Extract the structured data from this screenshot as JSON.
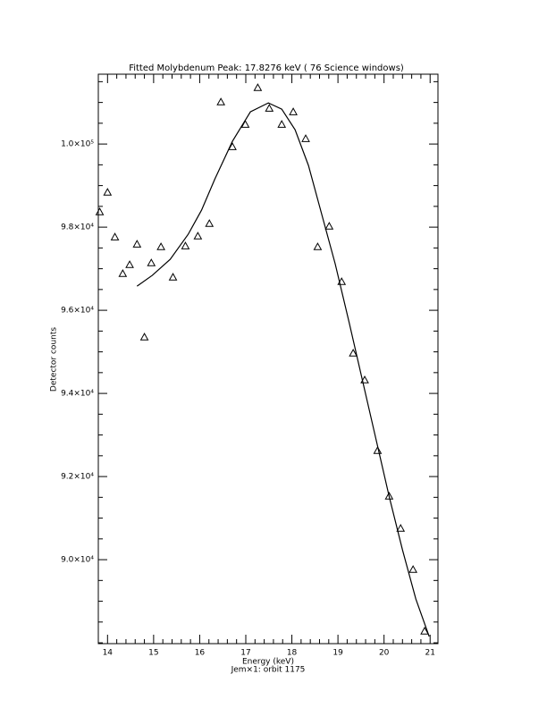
{
  "chart_data": {
    "type": "scatter",
    "title": "Fitted Molybdenum Peak:      17.8276 keV (      76 Science windows)",
    "x_label": "Energy (keV)",
    "subtitle": "Jem×1: orbit 1175",
    "y_label": "Detector counts",
    "xlim": [
      13.8,
      21.17
    ],
    "ylim": [
      87980,
      101680
    ],
    "xticks": [
      14,
      15,
      16,
      17,
      18,
      19,
      20,
      21
    ],
    "yticks": [
      {
        "value": 90000,
        "label": "9.0×10⁴"
      },
      {
        "value": 92000,
        "label": "9.2×10⁴"
      },
      {
        "value": 94000,
        "label": "9.4×10⁴"
      },
      {
        "value": 96000,
        "label": "9.6×10⁴"
      },
      {
        "value": 98000,
        "label": "9.8×10⁴"
      },
      {
        "value": 100000,
        "label": "1.0×10⁵"
      }
    ],
    "color": "#000000",
    "series": [
      {
        "style": "triangle",
        "x": [
          13.83,
          14.0,
          14.16,
          14.33,
          14.48,
          14.64,
          14.8,
          14.95,
          15.16,
          15.42,
          15.69,
          15.96,
          16.21,
          16.46,
          16.71,
          16.99,
          17.26,
          17.51,
          17.78,
          18.03,
          18.3,
          18.56,
          18.81,
          19.08,
          19.33,
          19.58,
          19.86,
          20.11,
          20.36,
          20.63,
          20.88
        ],
        "values": [
          98366,
          98839,
          97763,
          96882,
          97097,
          97591,
          95355,
          97140,
          97527,
          96796,
          97548,
          97785,
          98086,
          101011,
          99935,
          100473,
          101355,
          100860,
          100473,
          100774,
          100129,
          97527,
          98022,
          96688,
          94968,
          94323,
          92624,
          91527,
          90753,
          89763,
          88280
        ]
      },
      {
        "style": "line",
        "x": [
          14.64,
          14.97,
          15.36,
          15.75,
          16.04,
          16.33,
          16.71,
          17.1,
          17.49,
          17.78,
          18.07,
          18.36,
          18.65,
          18.94,
          19.24,
          19.53,
          19.82,
          20.11,
          20.4,
          20.69,
          20.98
        ],
        "values": [
          96581,
          96839,
          97226,
          97828,
          98409,
          99161,
          100065,
          100774,
          100989,
          100839,
          100344,
          99484,
          98301,
          97118,
          95720,
          94323,
          92925,
          91527,
          90237,
          89054,
          88151
        ]
      }
    ]
  }
}
